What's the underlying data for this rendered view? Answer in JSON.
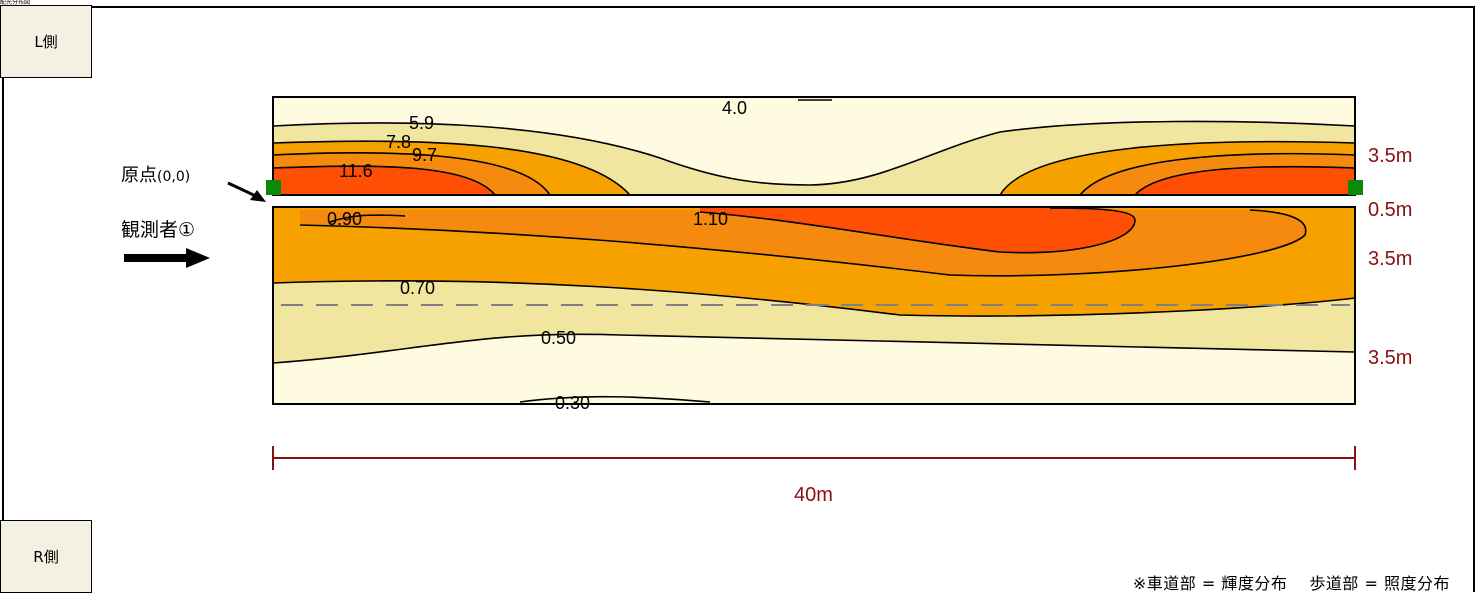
{
  "header": {
    "title_fragment": "配光分布図"
  },
  "sides": {
    "left": "L側",
    "right": "R側"
  },
  "origin": {
    "label": "原点",
    "coords": "(0,0)"
  },
  "observer": {
    "label": "観測者①"
  },
  "dimensions": {
    "length": "40m",
    "widths": [
      "3.5m",
      "0.5m",
      "3.5m",
      "3.5m"
    ]
  },
  "contours": {
    "sidewalk": [
      "4.0",
      "5.9",
      "7.8",
      "9.7",
      "11.6"
    ],
    "road": [
      "0.90",
      "1.10",
      "0.70",
      "0.50",
      "0.30"
    ]
  },
  "colors": {
    "level1": "#fffbe1",
    "level2": "#f1e6a0",
    "level3": "#f7a100",
    "level4": "#f58a0f",
    "level5": "#ff4f05",
    "dim": "#8b1010",
    "marker": "#0a8a0a"
  },
  "footnote": "※車道部 = 輝度分布　 歩道部 = 照度分布"
}
